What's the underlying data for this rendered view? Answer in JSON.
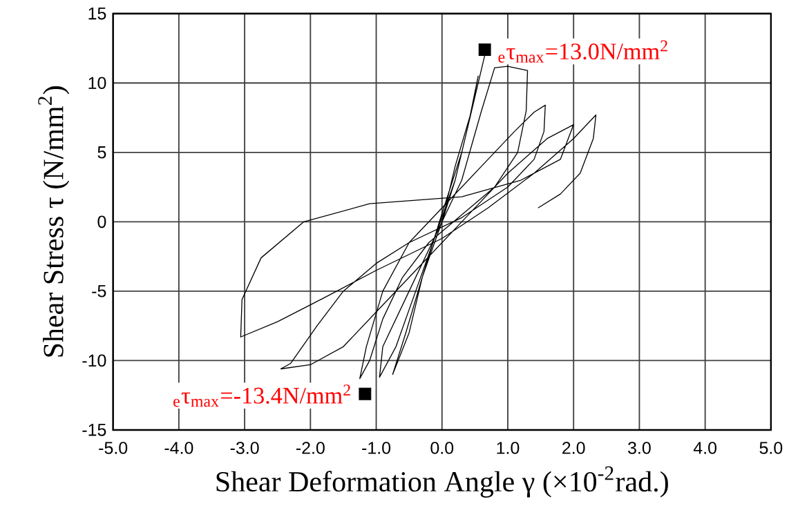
{
  "chart_data": {
    "type": "line",
    "xlabel": "Shear Deformation Angle γ (×10$^{-2}$rad.)",
    "ylabel": "Shear Stress τ (N/mm$^{2}$)",
    "xlim": [
      -5,
      5
    ],
    "ylim": [
      -15,
      15
    ],
    "xticks": [
      {
        "value": -5,
        "label": "-5.0"
      },
      {
        "value": -4,
        "label": "-4.0"
      },
      {
        "value": -3,
        "label": "-3.0"
      },
      {
        "value": -2,
        "label": "-2.0"
      },
      {
        "value": -1,
        "label": "-1.0"
      },
      {
        "value": 0,
        "label": "0.0"
      },
      {
        "value": 1,
        "label": "1.0"
      },
      {
        "value": 2,
        "label": "2.0"
      },
      {
        "value": 3,
        "label": "3.0"
      },
      {
        "value": 4,
        "label": "4.0"
      },
      {
        "value": 5,
        "label": "5.0"
      }
    ],
    "yticks": [
      -15,
      -10,
      -5,
      0,
      5,
      10,
      15
    ],
    "grid": true,
    "series": [
      {
        "color": "#000000",
        "marker": "none",
        "x": [
          0,
          0.2,
          0.4,
          0.55,
          0.45,
          0.2,
          0,
          -0.3,
          -0.5,
          -0.75,
          -0.55,
          -0.3,
          0,
          0.3,
          0.5,
          0.65,
          0.5,
          0.2,
          -0.1,
          -0.4,
          -0.7,
          -0.95,
          -0.9,
          -0.5,
          -0.1,
          0.3,
          0.6,
          0.8,
          1.0,
          1.3,
          1.28,
          1.15,
          0.8,
          0.3,
          -0.2,
          -0.6,
          -0.9,
          -1.1,
          -1.25,
          -1.15,
          -0.9,
          -0.5,
          0,
          0.6,
          1.1,
          1.4,
          1.57,
          1.55,
          1.4,
          1.0,
          0.3,
          -0.5,
          -1.0,
          -1.5,
          -1.9,
          -2.3,
          -2.45,
          -2.0,
          -1.5,
          -1.0,
          -0.3,
          0.3,
          1.0,
          1.6,
          2.0,
          1.8,
          1.2,
          0.3,
          -1.1,
          -2.1,
          -2.75,
          -3.04,
          -3.06,
          -2.5,
          -1.8,
          -1.0,
          0,
          0.7,
          1.4,
          2.0,
          2.34,
          2.3,
          2.1,
          1.8,
          1.46
        ],
        "values": [
          0,
          3,
          7,
          10.5,
          8,
          4,
          0,
          -4,
          -8,
          -11,
          -8,
          -4,
          0.6,
          5,
          9,
          12,
          9,
          3,
          -1,
          -5,
          -9,
          -11.2,
          -9,
          -5,
          -1,
          3,
          8,
          11.1,
          11.2,
          10.9,
          8,
          5,
          2.5,
          0.5,
          -1.5,
          -4,
          -7,
          -10,
          -11.3,
          -9,
          -5,
          -1.5,
          1,
          4,
          6.5,
          7.9,
          8.4,
          6.5,
          4.5,
          2.5,
          0.3,
          -1.5,
          -3,
          -5,
          -7.5,
          -10.2,
          -10.6,
          -10.3,
          -9,
          -6.5,
          -3,
          0,
          3.5,
          6,
          7.0,
          4.5,
          3.0,
          1.8,
          1.3,
          0,
          -2.6,
          -5.6,
          -8.3,
          -7.2,
          -5.5,
          -3.5,
          -1.2,
          1.0,
          3.5,
          6.0,
          7.7,
          6.0,
          3.5,
          2.0,
          1.0
        ]
      },
      {
        "type": "scatter",
        "color": "#000000",
        "marker": "square",
        "x": [
          0.65,
          -1.17
        ],
        "values": [
          12.4,
          -12.4
        ]
      }
    ],
    "annotations": [
      {
        "text": "$_{e}$τ$_{max}$=13.0N/mm$^{2}$",
        "x": 0.65,
        "y": 12.4
      },
      {
        "text": "$_{e}$τ$_{max}$=-13.4N/mm$^{2}$",
        "x": -1.17,
        "y": -12.4
      }
    ]
  }
}
